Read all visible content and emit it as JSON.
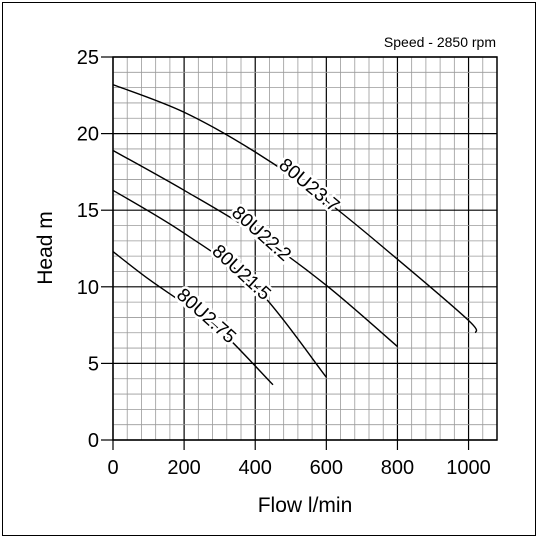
{
  "chart_data": {
    "type": "line",
    "title": "",
    "annotation": "Speed - 2850 rpm",
    "xlabel": "Flow l/min",
    "ylabel": "Head m",
    "xlim": [
      0,
      1080
    ],
    "ylim": [
      0,
      25
    ],
    "xticks": [
      "0",
      "200",
      "400",
      "600",
      "800",
      "1000"
    ],
    "yticks": [
      "0",
      "5",
      "10",
      "15",
      "20",
      "25"
    ],
    "grid": true,
    "legend": "none",
    "series": [
      {
        "name": "80U23.7",
        "x": [
          0,
          200,
          400,
          600,
          800,
          1000,
          1020
        ],
        "y": [
          23.2,
          21.4,
          18.8,
          15.6,
          11.8,
          7.8,
          7.0
        ]
      },
      {
        "name": "80U22.2",
        "x": [
          0,
          200,
          400,
          600,
          800
        ],
        "y": [
          18.9,
          16.3,
          13.5,
          10.1,
          6.1
        ]
      },
      {
        "name": "80U21.5",
        "x": [
          0,
          200,
          400,
          600
        ],
        "y": [
          16.3,
          13.5,
          10.0,
          4.1
        ]
      },
      {
        "name": "80U2.75",
        "x": [
          0,
          100,
          200,
          300,
          450
        ],
        "y": [
          12.3,
          10.5,
          8.9,
          7.2,
          3.6
        ]
      }
    ]
  },
  "colors": {
    "grid_minor": "#9a9a9a",
    "grid_major": "#000000",
    "curve": "#000000"
  }
}
